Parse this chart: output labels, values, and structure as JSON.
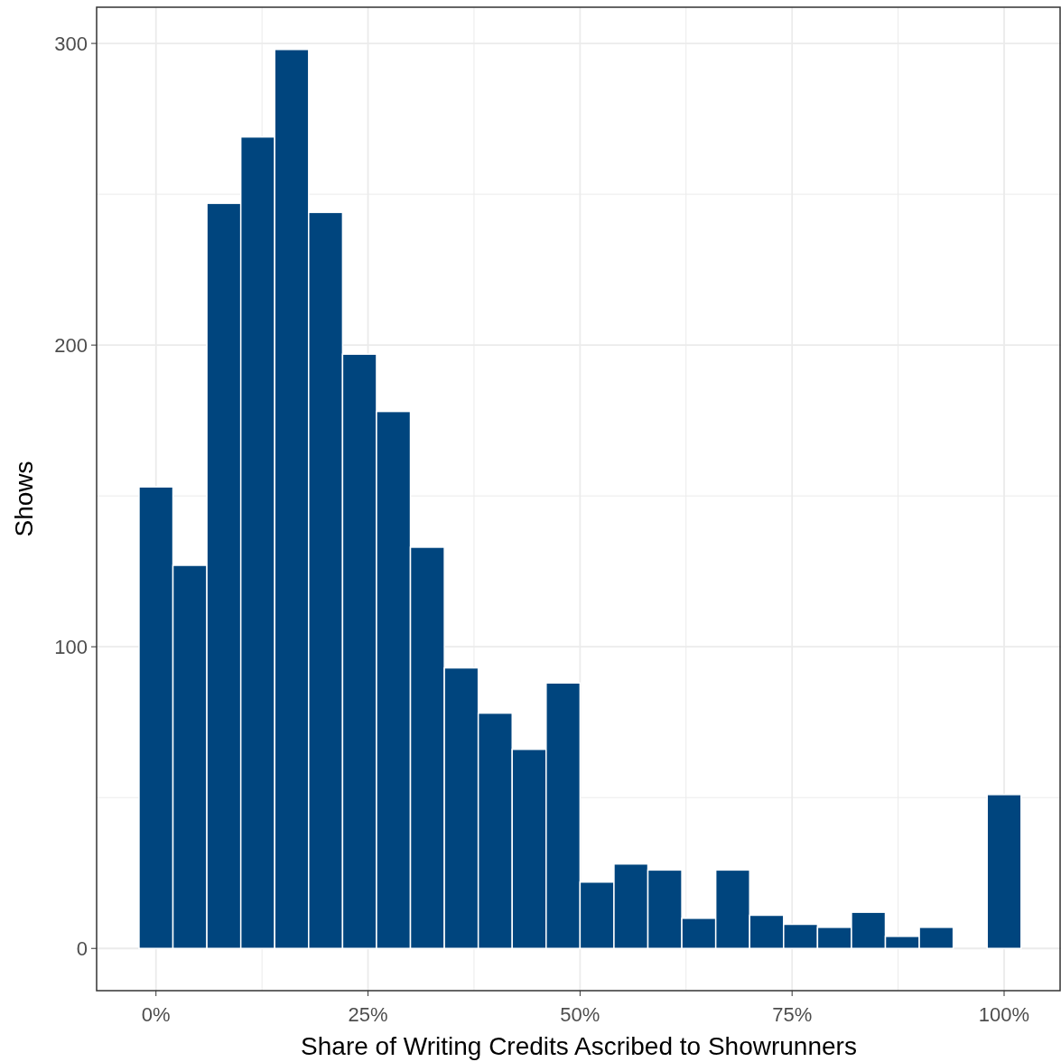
{
  "chart_data": {
    "type": "histogram",
    "xlabel": "Share of Writing Credits Ascribed to Showrunners",
    "ylabel": "Shows",
    "bins": [
      -2,
      2,
      6,
      10,
      14,
      18,
      22,
      26,
      30,
      34,
      38,
      42,
      46,
      50,
      54,
      58,
      62,
      66,
      70,
      74,
      78,
      82,
      86,
      90,
      94,
      98,
      102
    ],
    "values": [
      153,
      127,
      247,
      269,
      298,
      244,
      197,
      178,
      133,
      93,
      78,
      66,
      88,
      22,
      28,
      26,
      10,
      26,
      11,
      8,
      7,
      12,
      4,
      7,
      0,
      51
    ],
    "color": "#00457e",
    "xlim": [
      -7,
      106.6
    ],
    "ylim": [
      -14,
      312
    ],
    "xticks": [
      {
        "value": 0,
        "label": "0%"
      },
      {
        "value": 12.5,
        "label": null
      },
      {
        "value": 25,
        "label": "25%"
      },
      {
        "value": 37.5,
        "label": null
      },
      {
        "value": 50,
        "label": "50%"
      },
      {
        "value": 62.5,
        "label": null
      },
      {
        "value": 75,
        "label": "75%"
      },
      {
        "value": 87.5,
        "label": null
      },
      {
        "value": 100,
        "label": "100%"
      }
    ],
    "yticks": [
      0,
      {
        "value": 50,
        "label": null
      },
      100,
      {
        "value": 150,
        "label": null
      },
      200,
      {
        "value": 250,
        "label": null
      },
      300
    ],
    "grid": true
  }
}
